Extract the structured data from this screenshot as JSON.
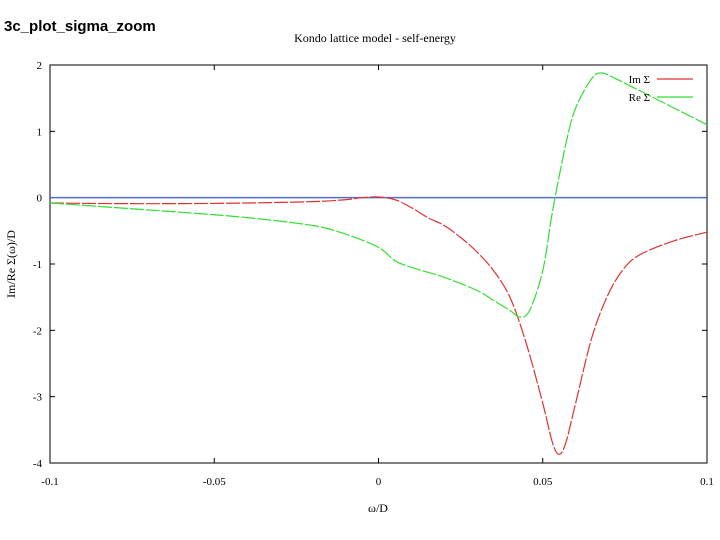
{
  "slide_label": "3c_plot_sigma_zoom",
  "chart_data": {
    "type": "line",
    "title": "Kondo lattice model - self-energy",
    "xlabel": "ω/D",
    "ylabel": "Im/Re Σ(ω)/D",
    "xlim": [
      -0.1,
      0.1
    ],
    "ylim": [
      -4,
      2
    ],
    "x_ticks": [
      "-0.1",
      "-0.05",
      "0",
      "0.05",
      "0.1"
    ],
    "y_ticks": [
      "2",
      "1",
      "0",
      "-1",
      "-2",
      "-3",
      "-4"
    ],
    "x_tick_values": [
      -0.1,
      -0.05,
      0,
      0.05,
      0.1
    ],
    "y_tick_values": [
      2,
      1,
      0,
      -1,
      -2,
      -3,
      -4
    ],
    "legend_position": "top-right",
    "zero_line_color": "#4f6fd0",
    "series": [
      {
        "name": "Im Σ",
        "color": "#e03030",
        "points": [
          [
            -0.1,
            -0.08
          ],
          [
            -0.08,
            -0.09
          ],
          [
            -0.06,
            -0.09
          ],
          [
            -0.04,
            -0.08
          ],
          [
            -0.02,
            -0.06
          ],
          [
            -0.01,
            -0.03
          ],
          [
            -0.005,
            0.0
          ],
          [
            0.0,
            0.01
          ],
          [
            0.005,
            -0.03
          ],
          [
            0.01,
            -0.15
          ],
          [
            0.015,
            -0.3
          ],
          [
            0.02,
            -0.42
          ],
          [
            0.025,
            -0.6
          ],
          [
            0.03,
            -0.82
          ],
          [
            0.035,
            -1.1
          ],
          [
            0.04,
            -1.5
          ],
          [
            0.045,
            -2.2
          ],
          [
            0.05,
            -3.1
          ],
          [
            0.053,
            -3.7
          ],
          [
            0.055,
            -3.87
          ],
          [
            0.057,
            -3.7
          ],
          [
            0.06,
            -3.1
          ],
          [
            0.065,
            -2.1
          ],
          [
            0.07,
            -1.45
          ],
          [
            0.075,
            -1.05
          ],
          [
            0.08,
            -0.85
          ],
          [
            0.09,
            -0.65
          ],
          [
            0.1,
            -0.52
          ]
        ]
      },
      {
        "name": "Re Σ",
        "color": "#33dd33",
        "points": [
          [
            -0.1,
            -0.08
          ],
          [
            -0.08,
            -0.15
          ],
          [
            -0.06,
            -0.22
          ],
          [
            -0.04,
            -0.3
          ],
          [
            -0.02,
            -0.42
          ],
          [
            -0.01,
            -0.55
          ],
          [
            0.0,
            -0.75
          ],
          [
            0.005,
            -0.95
          ],
          [
            0.01,
            -1.05
          ],
          [
            0.02,
            -1.2
          ],
          [
            0.03,
            -1.4
          ],
          [
            0.035,
            -1.55
          ],
          [
            0.04,
            -1.7
          ],
          [
            0.043,
            -1.8
          ],
          [
            0.046,
            -1.7
          ],
          [
            0.05,
            -1.1
          ],
          [
            0.053,
            -0.2
          ],
          [
            0.057,
            0.8
          ],
          [
            0.06,
            1.35
          ],
          [
            0.065,
            1.8
          ],
          [
            0.068,
            1.88
          ],
          [
            0.072,
            1.8
          ],
          [
            0.08,
            1.6
          ],
          [
            0.09,
            1.35
          ],
          [
            0.1,
            1.1
          ]
        ]
      }
    ]
  }
}
